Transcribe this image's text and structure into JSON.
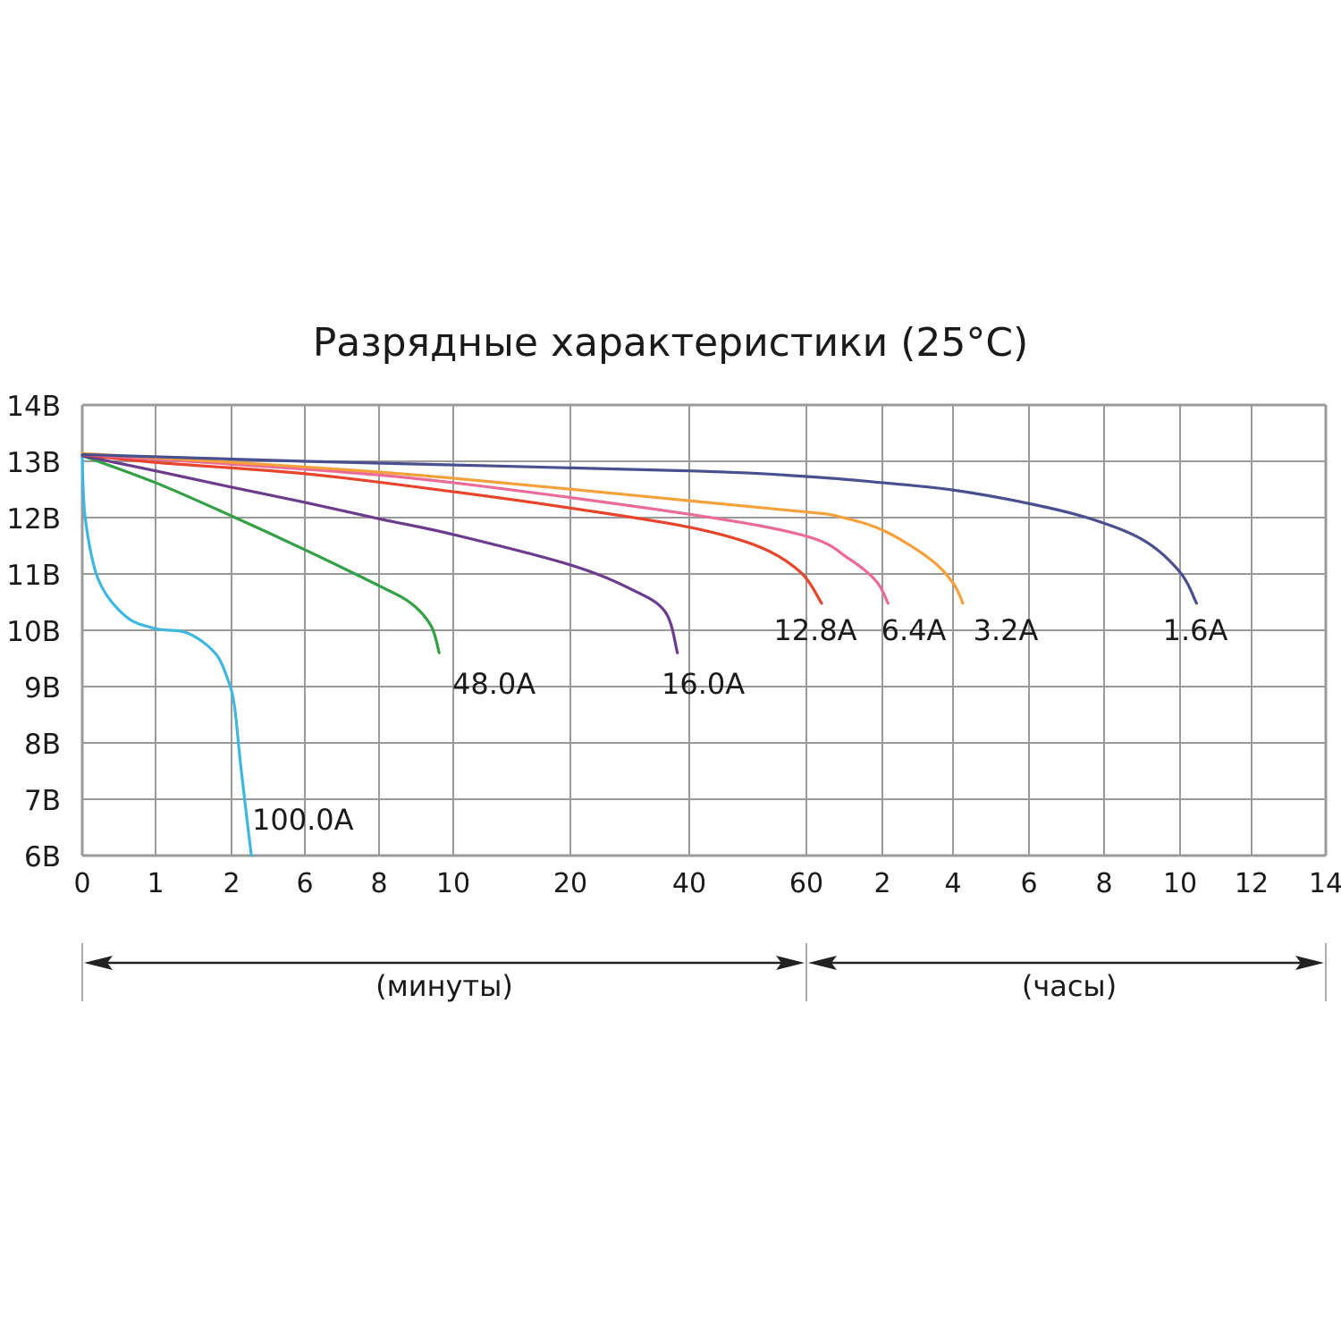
{
  "chart_data": {
    "type": "line",
    "title": "Разрядные характеристики (25°C)",
    "xlabel_minutes": "(минуты)",
    "xlabel_hours": "(часы)",
    "x_tick_labels": [
      "0",
      "1",
      "2",
      "6",
      "8",
      "10",
      "20",
      "40",
      "60",
      "2",
      "4",
      "6",
      "8",
      "10",
      "12",
      "14"
    ],
    "x_note": "x values are positions on the non-linear tick scale (tick index 0-15)",
    "y_tick_labels": [
      "14В",
      "13В",
      "12В",
      "11В",
      "10В",
      "9В",
      "8В",
      "7В",
      "6В"
    ],
    "ylim": [
      6,
      14
    ],
    "grid": true,
    "series": [
      {
        "name": "100.0A",
        "color": "#3fb6e0",
        "points": [
          [
            0,
            13.1
          ],
          [
            0.04,
            12.0
          ],
          [
            0.22,
            10.9
          ],
          [
            0.59,
            10.25
          ],
          [
            1,
            10.03
          ],
          [
            1.42,
            9.95
          ],
          [
            1.78,
            9.6
          ],
          [
            1.95,
            9.13
          ],
          [
            2.04,
            8.65
          ],
          [
            2.13,
            7.54
          ],
          [
            2.27,
            6.0
          ]
        ]
      },
      {
        "name": "48.0A",
        "color": "#34a046",
        "points": [
          [
            0,
            13.1
          ],
          [
            1,
            12.62
          ],
          [
            2,
            12.03
          ],
          [
            3,
            11.43
          ],
          [
            4,
            10.79
          ],
          [
            4.43,
            10.48
          ],
          [
            4.7,
            10.08
          ],
          [
            4.81,
            9.6
          ]
        ]
      },
      {
        "name": "16.0A",
        "color": "#6b3b8c",
        "points": [
          [
            0,
            13.1
          ],
          [
            1,
            12.83
          ],
          [
            2,
            12.54
          ],
          [
            3,
            12.27
          ],
          [
            4,
            11.98
          ],
          [
            5,
            11.7
          ],
          [
            6,
            11.16
          ],
          [
            6.53,
            10.71
          ],
          [
            6.8,
            10.32
          ],
          [
            6.9,
            9.6
          ]
        ]
      },
      {
        "name": "12.8A",
        "color": "#e8432b",
        "points": [
          [
            0,
            13.12
          ],
          [
            1,
            12.98
          ],
          [
            3,
            12.78
          ],
          [
            5,
            12.46
          ],
          [
            6,
            12.17
          ],
          [
            7,
            11.83
          ],
          [
            7.6,
            11.48
          ],
          [
            7.95,
            11.03
          ],
          [
            8.2,
            10.48
          ]
        ]
      },
      {
        "name": "6.4A",
        "color": "#ec6a9a",
        "points": [
          [
            0,
            13.12
          ],
          [
            3,
            12.86
          ],
          [
            5,
            12.62
          ],
          [
            7,
            12.06
          ],
          [
            8,
            11.67
          ],
          [
            8.56,
            11.27
          ],
          [
            8.92,
            10.87
          ],
          [
            9.08,
            10.48
          ]
        ]
      },
      {
        "name": "3.2A",
        "color": "#f5a03a",
        "points": [
          [
            0,
            13.14
          ],
          [
            3,
            12.9
          ],
          [
            5,
            12.7
          ],
          [
            7,
            12.3
          ],
          [
            8,
            12.1
          ],
          [
            8.39,
            12.03
          ],
          [
            9,
            11.78
          ],
          [
            9.67,
            11.27
          ],
          [
            10,
            10.84
          ],
          [
            10.13,
            10.48
          ]
        ]
      },
      {
        "name": "1.6A",
        "color": "#4a4f8f",
        "points": [
          [
            0,
            13.12
          ],
          [
            3,
            13.0
          ],
          [
            7,
            12.83
          ],
          [
            8,
            12.73
          ],
          [
            9,
            12.62
          ],
          [
            10,
            12.49
          ],
          [
            11,
            12.25
          ],
          [
            11.82,
            11.98
          ],
          [
            12.53,
            11.59
          ],
          [
            13,
            11.03
          ],
          [
            13.23,
            10.48
          ]
        ]
      }
    ]
  }
}
